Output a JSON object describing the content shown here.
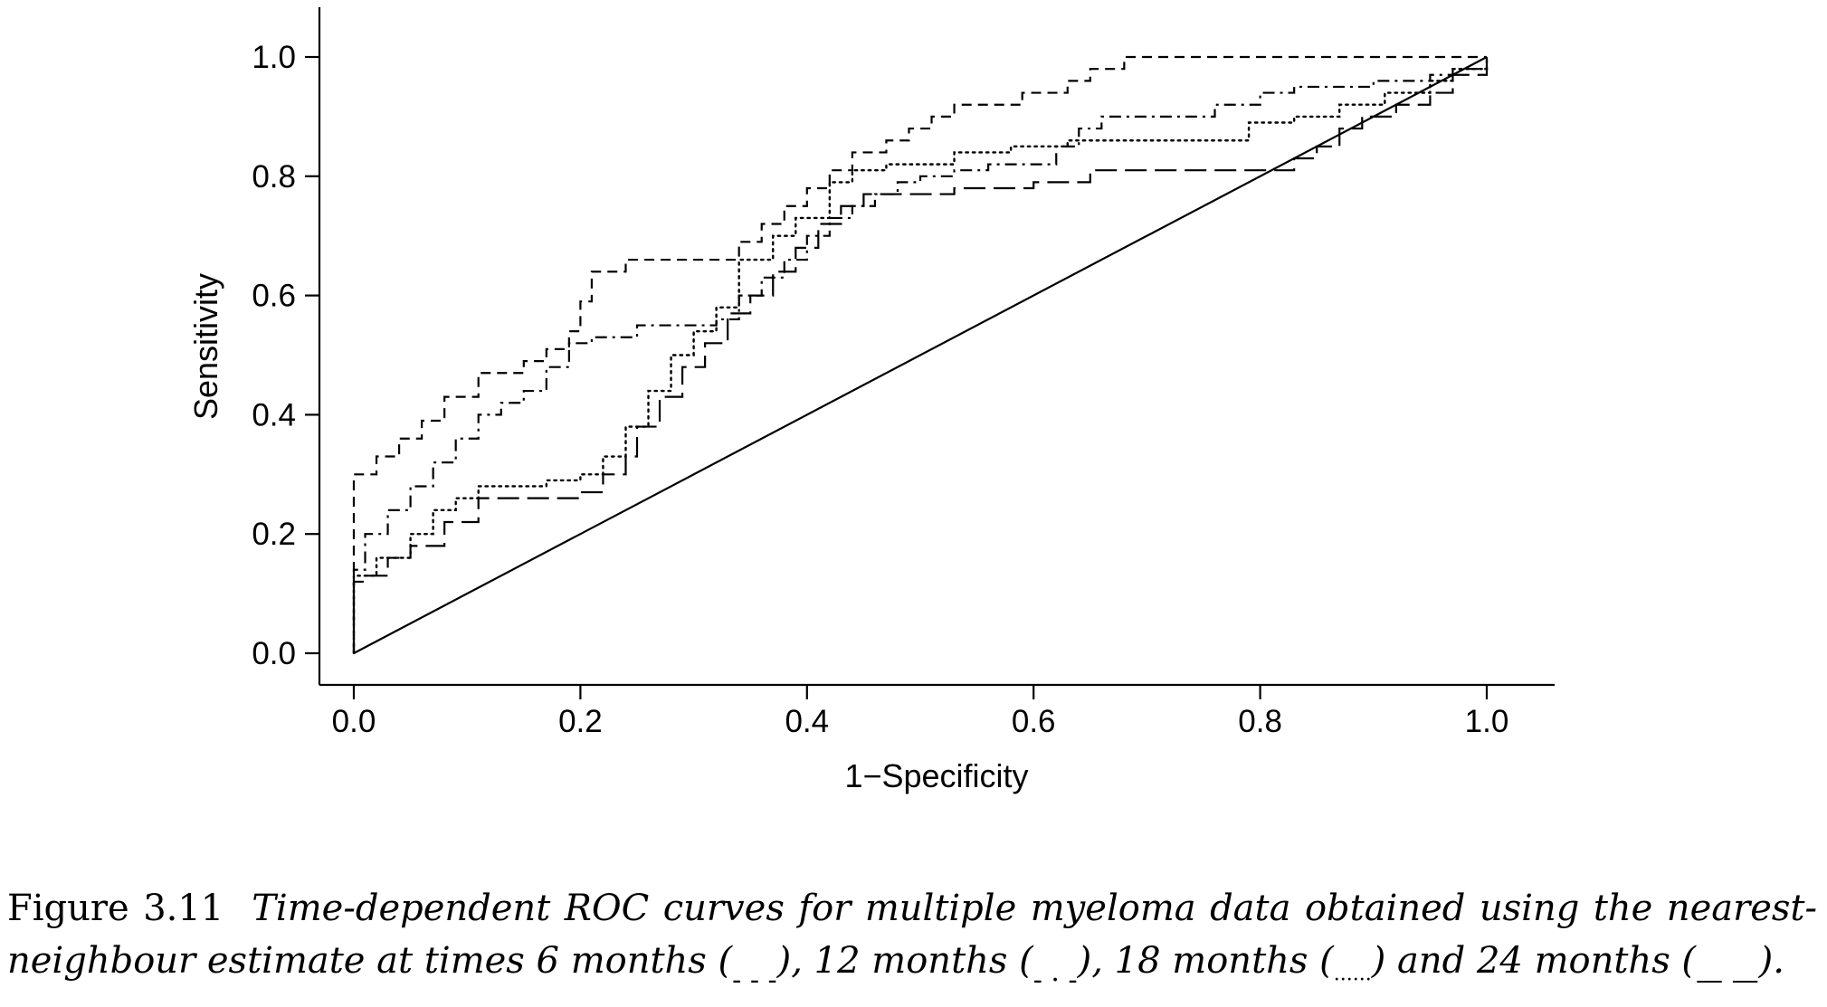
{
  "chart_data": {
    "type": "line",
    "xlabel": "1−Specificity",
    "ylabel": "Sensitivity",
    "xlim": [
      0,
      1
    ],
    "ylim": [
      0,
      1
    ],
    "xticks": [
      "0.0",
      "0.2",
      "0.4",
      "0.6",
      "0.8",
      "1.0"
    ],
    "yticks": [
      "0.0",
      "0.2",
      "0.4",
      "0.6",
      "0.8",
      "1.0"
    ],
    "grid": false,
    "series": [
      {
        "style": "dashed",
        "x": [
          0,
          0,
          0.02,
          0.04,
          0.06,
          0.08,
          0.11,
          0.15,
          0.17,
          0.19,
          0.2,
          0.21,
          0.24,
          0.33,
          0.34,
          0.36,
          0.38,
          0.4,
          0.42,
          0.44,
          0.47,
          0.49,
          0.51,
          0.53,
          0.57,
          0.59,
          0.6,
          0.63,
          0.65,
          0.68,
          1.0
        ],
        "y": [
          0,
          0.3,
          0.33,
          0.36,
          0.39,
          0.43,
          0.47,
          0.49,
          0.51,
          0.54,
          0.59,
          0.64,
          0.66,
          0.66,
          0.69,
          0.72,
          0.75,
          0.78,
          0.81,
          0.84,
          0.86,
          0.88,
          0.9,
          0.92,
          0.92,
          0.94,
          0.94,
          0.96,
          0.98,
          1.0,
          1.0
        ]
      },
      {
        "style": "dash-dot",
        "x": [
          0,
          0,
          0.01,
          0.03,
          0.05,
          0.07,
          0.09,
          0.11,
          0.13,
          0.15,
          0.17,
          0.19,
          0.21,
          0.25,
          0.32,
          0.34,
          0.36,
          0.38,
          0.4,
          0.42,
          0.44,
          0.46,
          0.48,
          0.5,
          0.53,
          0.56,
          0.62,
          0.64,
          0.66,
          0.74,
          0.76,
          0.8,
          0.83,
          0.9,
          0.95,
          0.97,
          1.0
        ],
        "y": [
          0,
          0.14,
          0.2,
          0.24,
          0.28,
          0.32,
          0.36,
          0.4,
          0.42,
          0.44,
          0.48,
          0.52,
          0.53,
          0.55,
          0.56,
          0.6,
          0.63,
          0.66,
          0.7,
          0.73,
          0.75,
          0.77,
          0.79,
          0.8,
          0.81,
          0.82,
          0.85,
          0.88,
          0.9,
          0.9,
          0.92,
          0.94,
          0.95,
          0.96,
          0.97,
          0.98,
          1.0
        ]
      },
      {
        "style": "dotted",
        "x": [
          0,
          0,
          0.02,
          0.05,
          0.07,
          0.09,
          0.11,
          0.17,
          0.2,
          0.22,
          0.24,
          0.26,
          0.28,
          0.3,
          0.32,
          0.34,
          0.37,
          0.39,
          0.42,
          0.44,
          0.47,
          0.53,
          0.58,
          0.63,
          0.68,
          0.75,
          0.79,
          0.83,
          0.87,
          0.91,
          0.95,
          0.97,
          1.0
        ],
        "y": [
          0,
          0.13,
          0.16,
          0.2,
          0.24,
          0.26,
          0.28,
          0.29,
          0.3,
          0.33,
          0.38,
          0.44,
          0.5,
          0.54,
          0.58,
          0.66,
          0.7,
          0.73,
          0.79,
          0.81,
          0.82,
          0.84,
          0.85,
          0.86,
          0.86,
          0.86,
          0.89,
          0.9,
          0.92,
          0.94,
          0.96,
          0.98,
          1.0
        ]
      },
      {
        "style": "long-dash",
        "x": [
          0,
          0,
          0.01,
          0.03,
          0.05,
          0.08,
          0.11,
          0.2,
          0.22,
          0.24,
          0.25,
          0.27,
          0.29,
          0.31,
          0.33,
          0.35,
          0.37,
          0.39,
          0.41,
          0.43,
          0.45,
          0.47,
          0.53,
          0.6,
          0.65,
          0.8,
          0.83,
          0.85,
          0.87,
          0.89,
          0.92,
          0.95,
          0.97,
          1.0
        ],
        "y": [
          0,
          0.12,
          0.13,
          0.16,
          0.18,
          0.22,
          0.26,
          0.27,
          0.3,
          0.33,
          0.38,
          0.43,
          0.48,
          0.52,
          0.57,
          0.6,
          0.64,
          0.68,
          0.72,
          0.75,
          0.77,
          0.77,
          0.78,
          0.79,
          0.81,
          0.81,
          0.83,
          0.85,
          0.88,
          0.9,
          0.92,
          0.94,
          0.97,
          1.0
        ]
      },
      {
        "style": "solid",
        "x": [
          0,
          1
        ],
        "y": [
          0,
          1
        ]
      }
    ]
  },
  "caption": {
    "lead": "Figure 3.11",
    "text_1": "Time-dependent ROC curves for multiple myeloma data obtained using the nearest-neighbour estimate at times 6 months (",
    "sample_1": "- - -",
    "text_2": "), 12 months (",
    "sample_2": "- · -",
    "text_3": "), 18 months (",
    "sample_3": "······",
    "text_4": ") and 24 months (",
    "sample_4": "— —",
    "text_5": ")."
  }
}
